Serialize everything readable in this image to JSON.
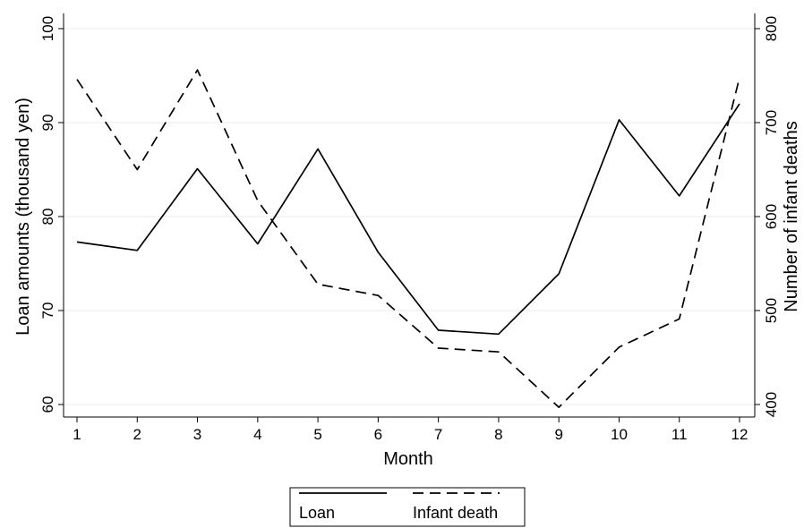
{
  "chart_data": {
    "type": "line",
    "categories": [
      "1",
      "2",
      "3",
      "4",
      "5",
      "6",
      "7",
      "8",
      "9",
      "10",
      "11",
      "12"
    ],
    "x": [
      1,
      2,
      3,
      4,
      5,
      6,
      7,
      8,
      9,
      10,
      11,
      12
    ],
    "xlabel": "Month",
    "xlim": [
      1,
      12
    ],
    "y_left": {
      "label": "Loan amounts (thousand yen)",
      "lim": [
        60,
        100
      ],
      "ticks": [
        "60",
        "70",
        "80",
        "90",
        "100"
      ]
    },
    "y_right": {
      "label": "Number of infant deaths",
      "lim": [
        400,
        800
      ],
      "ticks": [
        "400",
        "500",
        "600",
        "700",
        "800"
      ]
    },
    "series": [
      {
        "name": "Loan",
        "axis": "left",
        "style": "solid",
        "values": [
          77.3,
          76.4,
          85.1,
          77.1,
          87.2,
          76.2,
          67.9,
          67.5,
          73.9,
          90.3,
          82.2,
          92.0
        ]
      },
      {
        "name": "Infant death",
        "axis": "right",
        "style": "dashed",
        "values": [
          746,
          650,
          756,
          617,
          528,
          516,
          460,
          456,
          397,
          461,
          491,
          748
        ]
      }
    ],
    "grid": true,
    "legend_position": "bottom"
  }
}
